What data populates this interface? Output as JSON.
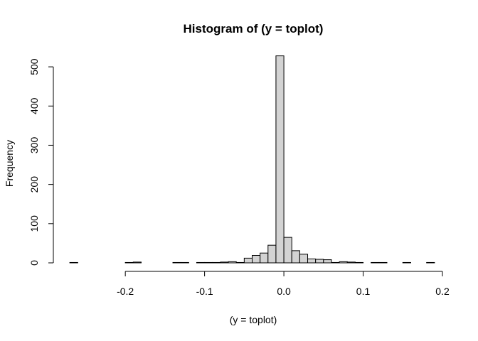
{
  "chart_data": {
    "type": "bar",
    "title": "Histogram of (y = toplot)",
    "xlabel": "(y = toplot)",
    "ylabel": "Frequency",
    "xlim": [
      -0.28,
      0.2
    ],
    "ylim": [
      0,
      540
    ],
    "xaxis": {
      "range": [
        -0.2,
        0.2
      ],
      "ticks": [
        -0.2,
        -0.1,
        0.0,
        0.1,
        0.2
      ],
      "tick_labels": [
        "-0.2",
        "-0.1",
        "0.0",
        "0.1",
        "0.2"
      ]
    },
    "yaxis": {
      "range": [
        0,
        500
      ],
      "ticks": [
        0,
        100,
        200,
        300,
        400,
        500
      ],
      "tick_labels": [
        "0",
        "100",
        "200",
        "300",
        "400",
        "500"
      ]
    },
    "bin_width": 0.01,
    "bins": [
      {
        "x0": -0.27,
        "x1": -0.26,
        "count": 1
      },
      {
        "x0": -0.26,
        "x1": -0.25,
        "count": 0
      },
      {
        "x0": -0.25,
        "x1": -0.24,
        "count": 0
      },
      {
        "x0": -0.24,
        "x1": -0.23,
        "count": 0
      },
      {
        "x0": -0.23,
        "x1": -0.22,
        "count": 0
      },
      {
        "x0": -0.22,
        "x1": -0.21,
        "count": 0
      },
      {
        "x0": -0.21,
        "x1": -0.2,
        "count": 0
      },
      {
        "x0": -0.2,
        "x1": -0.19,
        "count": 1
      },
      {
        "x0": -0.19,
        "x1": -0.18,
        "count": 2
      },
      {
        "x0": -0.18,
        "x1": -0.17,
        "count": 0
      },
      {
        "x0": -0.17,
        "x1": -0.16,
        "count": 0
      },
      {
        "x0": -0.16,
        "x1": -0.15,
        "count": 0
      },
      {
        "x0": -0.15,
        "x1": -0.14,
        "count": 0
      },
      {
        "x0": -0.14,
        "x1": -0.13,
        "count": 1
      },
      {
        "x0": -0.13,
        "x1": -0.12,
        "count": 1
      },
      {
        "x0": -0.12,
        "x1": -0.11,
        "count": 0
      },
      {
        "x0": -0.11,
        "x1": -0.1,
        "count": 1
      },
      {
        "x0": -0.1,
        "x1": -0.09,
        "count": 1
      },
      {
        "x0": -0.09,
        "x1": -0.08,
        "count": 1
      },
      {
        "x0": -0.08,
        "x1": -0.07,
        "count": 2
      },
      {
        "x0": -0.07,
        "x1": -0.06,
        "count": 3
      },
      {
        "x0": -0.06,
        "x1": -0.05,
        "count": 1
      },
      {
        "x0": -0.05,
        "x1": -0.04,
        "count": 12
      },
      {
        "x0": -0.04,
        "x1": -0.03,
        "count": 19
      },
      {
        "x0": -0.03,
        "x1": -0.02,
        "count": 25
      },
      {
        "x0": -0.02,
        "x1": -0.01,
        "count": 45
      },
      {
        "x0": -0.01,
        "x1": 0.0,
        "count": 528
      },
      {
        "x0": 0.0,
        "x1": 0.01,
        "count": 65
      },
      {
        "x0": 0.01,
        "x1": 0.02,
        "count": 31
      },
      {
        "x0": 0.02,
        "x1": 0.03,
        "count": 22
      },
      {
        "x0": 0.03,
        "x1": 0.04,
        "count": 10
      },
      {
        "x0": 0.04,
        "x1": 0.05,
        "count": 9
      },
      {
        "x0": 0.05,
        "x1": 0.06,
        "count": 8
      },
      {
        "x0": 0.06,
        "x1": 0.07,
        "count": 1
      },
      {
        "x0": 0.07,
        "x1": 0.08,
        "count": 3
      },
      {
        "x0": 0.08,
        "x1": 0.09,
        "count": 2
      },
      {
        "x0": 0.09,
        "x1": 0.1,
        "count": 1
      },
      {
        "x0": 0.1,
        "x1": 0.11,
        "count": 0
      },
      {
        "x0": 0.11,
        "x1": 0.12,
        "count": 1
      },
      {
        "x0": 0.12,
        "x1": 0.13,
        "count": 1
      },
      {
        "x0": 0.13,
        "x1": 0.14,
        "count": 0
      },
      {
        "x0": 0.14,
        "x1": 0.15,
        "count": 0
      },
      {
        "x0": 0.15,
        "x1": 0.16,
        "count": 1
      },
      {
        "x0": 0.16,
        "x1": 0.17,
        "count": 0
      },
      {
        "x0": 0.17,
        "x1": 0.18,
        "count": 0
      },
      {
        "x0": 0.18,
        "x1": 0.19,
        "count": 1
      }
    ],
    "bar_fill": "#d3d3d3",
    "bar_stroke": "#000000",
    "grid": false,
    "legend": "none"
  }
}
